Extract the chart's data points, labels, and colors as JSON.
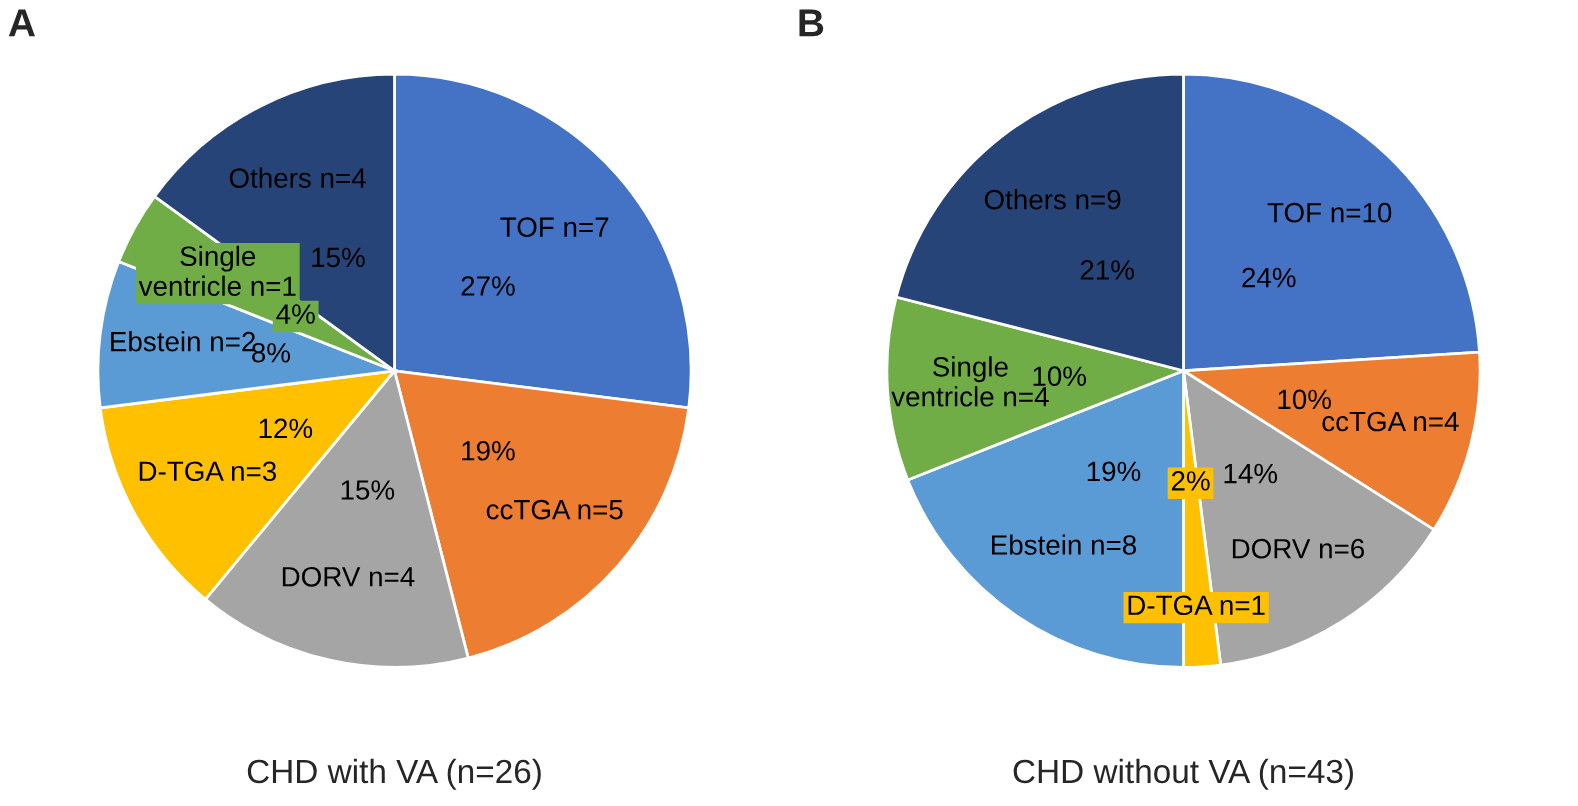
{
  "chart_data": [
    {
      "type": "pie",
      "title": "A",
      "xlabel": "CHD with VA (n=26)",
      "categories": [
        "TOF n=7",
        "ccTGA n=5",
        "DORV n=4",
        "D-TGA n=3",
        "Ebstein n=2",
        "Single\nventricle n=1",
        "Others n=4"
      ],
      "values": [
        27,
        19,
        15,
        12,
        8,
        4,
        15
      ],
      "value_labels": [
        "27%",
        "19%",
        "15%",
        "12%",
        "8%",
        "4%",
        "15%"
      ],
      "colors": [
        "#4472c4",
        "#ed7d31",
        "#a5a5a5",
        "#ffc000",
        "#5b9bd5",
        "#70ad47",
        "#264478"
      ]
    },
    {
      "type": "pie",
      "title": "B",
      "xlabel": "CHD without VA (n=43)",
      "categories": [
        "TOF n=10",
        "ccTGA n=4",
        "DORV n=6",
        "D-TGA n=1",
        "Ebstein n=8",
        "Single\nventricle n=4",
        "Others n=9"
      ],
      "values": [
        24,
        10,
        14,
        2,
        19,
        10,
        21
      ],
      "value_labels": [
        "24%",
        "10%",
        "14%",
        "2%",
        "19%",
        "10%",
        "21%"
      ],
      "colors": [
        "#4472c4",
        "#ed7d31",
        "#a5a5a5",
        "#ffc000",
        "#5b9bd5",
        "#70ad47",
        "#264478"
      ]
    }
  ]
}
